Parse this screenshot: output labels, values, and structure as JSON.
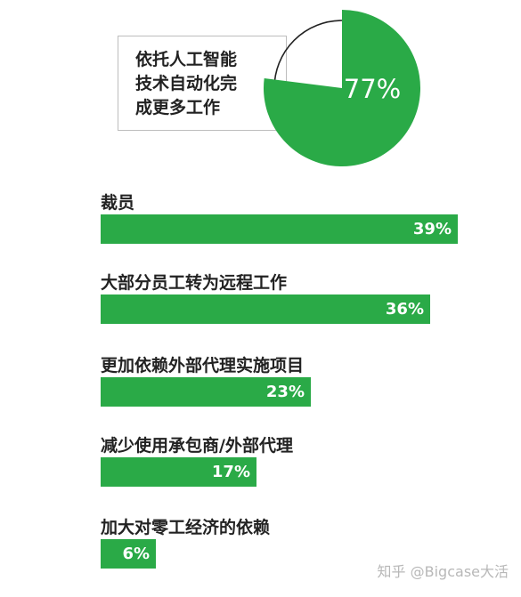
{
  "callout": {
    "lines": [
      "依托人工智能",
      "技术自动化完",
      "成更多工作"
    ]
  },
  "colors": {
    "accent": "#2aaa47",
    "bar": "#2aaa47",
    "ring_outline": "#222222"
  },
  "chart_data": [
    {
      "type": "pie",
      "slices": [
        {
          "label": "77%",
          "value": 77
        },
        {
          "label": "",
          "value": 23
        }
      ],
      "data_labels": [
        "77%"
      ]
    },
    {
      "type": "bar",
      "orientation": "horizontal",
      "categories": [
        "裁员",
        "大部分员工转为远程工作",
        "更加依赖外部代理实施项目",
        "减少使用承包商/外部代理",
        "加大对零工经济的依赖"
      ],
      "values": [
        39,
        36,
        23,
        17,
        6
      ],
      "value_labels": [
        "39%",
        "36%",
        "23%",
        "17%",
        "6%"
      ],
      "xlim": [
        0,
        39
      ],
      "grid": false
    }
  ],
  "watermark": "知乎 @Bigcase大活"
}
